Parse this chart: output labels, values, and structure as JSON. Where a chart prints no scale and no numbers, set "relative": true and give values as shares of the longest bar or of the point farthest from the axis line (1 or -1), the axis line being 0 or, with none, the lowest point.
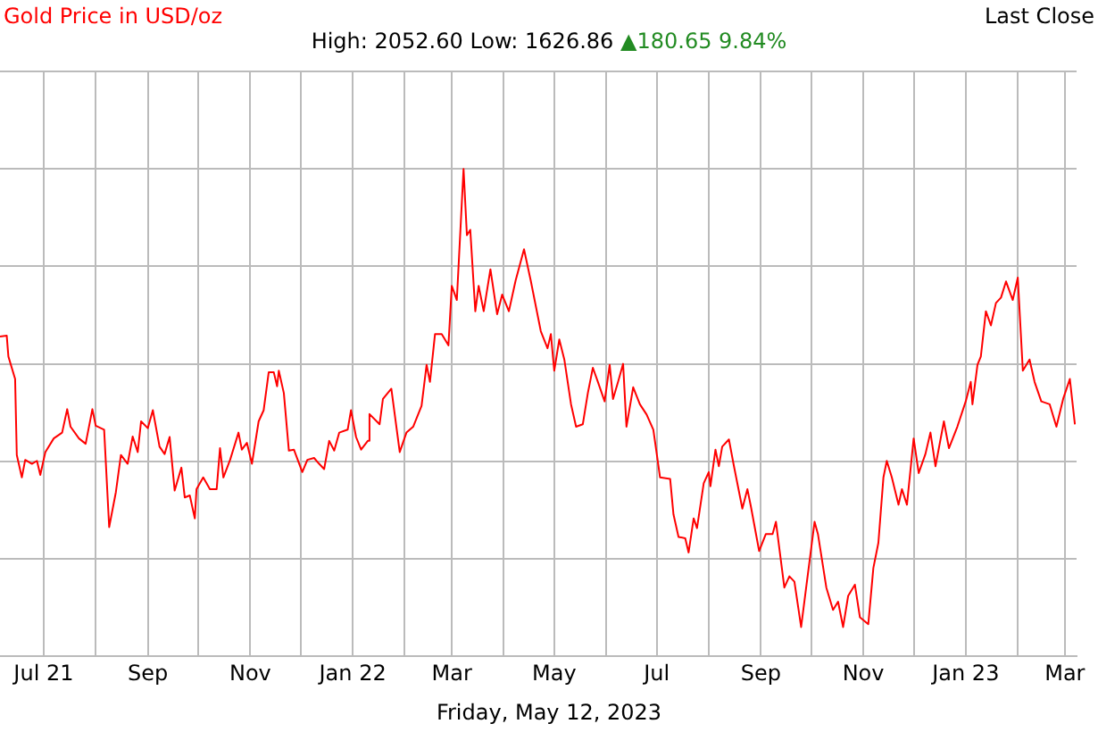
{
  "chart_data": {
    "type": "line",
    "title": "Gold Price in USD/oz",
    "subtitle": "High: 2052.60 Low: 1626.86",
    "annotations": [
      "▲180.65 9.84%",
      "Last Close",
      "Friday, May 12, 2023"
    ],
    "relative": true,
    "grid": true,
    "legend": false,
    "marker": "none",
    "line_style": "solid",
    "xlim": [
      "2021-06-05",
      "2023-03-08"
    ],
    "xticks": [
      {
        "value": "2021-07-01",
        "label": "Jul 21"
      },
      {
        "value": "2021-08-01",
        "label": null
      },
      {
        "value": "2021-09-01",
        "label": "Sep"
      },
      {
        "value": "2021-10-01",
        "label": null
      },
      {
        "value": "2021-11-01",
        "label": "Nov"
      },
      {
        "value": "2021-12-01",
        "label": null
      },
      {
        "value": "2022-01-01",
        "label": "Jan 22"
      },
      {
        "value": "2022-02-01",
        "label": null
      },
      {
        "value": "2022-03-01",
        "label": "Mar"
      },
      {
        "value": "2022-04-01",
        "label": null
      },
      {
        "value": "2022-05-01",
        "label": "May"
      },
      {
        "value": "2022-06-01",
        "label": null
      },
      {
        "value": "2022-07-01",
        "label": "Jul"
      },
      {
        "value": "2022-08-01",
        "label": null
      },
      {
        "value": "2022-09-01",
        "label": "Sep"
      },
      {
        "value": "2022-10-01",
        "label": null
      },
      {
        "value": "2022-11-01",
        "label": "Nov"
      },
      {
        "value": "2022-12-01",
        "label": null
      },
      {
        "value": "2023-01-01",
        "label": "Jan 23"
      },
      {
        "value": "2023-02-01",
        "label": null
      },
      {
        "value": "2023-03-01",
        "label": "Mar"
      }
    ],
    "series": [
      {
        "color": "#ff0000",
        "x": [
          "2021-06-05",
          "2021-06-09",
          "2021-06-10",
          "2021-06-14",
          "2021-06-15",
          "2021-06-18",
          "2021-06-20",
          "2021-06-24",
          "2021-06-27",
          "2021-06-29",
          "2021-07-02",
          "2021-07-07",
          "2021-07-12",
          "2021-07-15",
          "2021-07-17",
          "2021-07-22",
          "2021-07-26",
          "2021-07-30",
          "2021-08-01",
          "2021-08-06",
          "2021-08-09",
          "2021-08-13",
          "2021-08-16",
          "2021-08-20",
          "2021-08-23",
          "2021-08-26",
          "2021-08-28",
          "2021-09-01",
          "2021-09-04",
          "2021-09-08",
          "2021-09-11",
          "2021-09-14",
          "2021-09-17",
          "2021-09-21",
          "2021-09-23",
          "2021-09-26",
          "2021-09-29",
          "2021-09-30",
          "2021-10-04",
          "2021-10-08",
          "2021-10-12",
          "2021-10-14",
          "2021-10-16",
          "2021-10-20",
          "2021-10-25",
          "2021-10-27",
          "2021-10-30",
          "2021-11-02",
          "2021-11-06",
          "2021-11-09",
          "2021-11-12",
          "2021-11-15",
          "2021-11-17",
          "2021-11-18",
          "2021-11-21",
          "2021-11-24",
          "2021-11-27",
          "2021-12-02",
          "2021-12-05",
          "2021-12-09",
          "2021-12-12",
          "2021-12-15",
          "2021-12-18",
          "2021-12-21",
          "2021-12-24",
          "2021-12-29",
          "2021-12-31",
          "2022-01-03",
          "2022-01-06",
          "2022-01-10",
          "2022-01-11",
          "2022-01-17",
          "2022-01-19",
          "2022-01-24",
          "2022-01-29",
          "2022-02-02",
          "2022-02-06",
          "2022-02-11",
          "2022-02-14",
          "2022-02-16",
          "2022-02-19",
          "2022-02-23",
          "2022-02-27",
          "2022-03-01",
          "2022-03-04",
          "2022-03-08",
          "2022-03-10",
          "2022-03-12",
          "2022-03-15",
          "2022-03-17",
          "2022-03-20",
          "2022-03-24",
          "2022-03-28",
          "2022-03-31",
          "2022-04-04",
          "2022-04-08",
          "2022-04-13",
          "2022-04-17",
          "2022-04-23",
          "2022-04-27",
          "2022-04-29",
          "2022-05-01",
          "2022-05-04",
          "2022-05-07",
          "2022-05-11",
          "2022-05-14",
          "2022-05-18",
          "2022-05-21",
          "2022-05-24",
          "2022-05-27",
          "2022-05-31",
          "2022-06-03",
          "2022-06-05",
          "2022-06-08",
          "2022-06-11",
          "2022-06-13",
          "2022-06-17",
          "2022-06-21",
          "2022-06-25",
          "2022-06-29",
          "2022-07-03",
          "2022-07-09",
          "2022-07-11",
          "2022-07-14",
          "2022-07-18",
          "2022-07-20",
          "2022-07-23",
          "2022-07-25",
          "2022-07-29",
          "2022-08-01",
          "2022-08-02",
          "2022-08-05",
          "2022-08-07",
          "2022-08-09",
          "2022-08-13",
          "2022-08-16",
          "2022-08-21",
          "2022-08-24",
          "2022-08-26",
          "2022-08-31",
          "2022-09-04",
          "2022-09-08",
          "2022-09-10",
          "2022-09-15",
          "2022-09-18",
          "2022-09-21",
          "2022-09-25",
          "2022-09-28",
          "2022-10-03",
          "2022-10-05",
          "2022-10-10",
          "2022-10-14",
          "2022-10-17",
          "2022-10-20",
          "2022-10-23",
          "2022-10-27",
          "2022-10-30",
          "2022-11-04",
          "2022-11-07",
          "2022-11-10",
          "2022-11-13",
          "2022-11-15",
          "2022-11-18",
          "2022-11-22",
          "2022-11-24",
          "2022-11-27",
          "2022-12-01",
          "2022-12-04",
          "2022-12-08",
          "2022-12-11",
          "2022-12-14",
          "2022-12-19",
          "2022-12-22",
          "2022-12-27",
          "2023-01-01",
          "2023-01-04",
          "2023-01-05",
          "2023-01-08",
          "2023-01-10",
          "2023-01-13",
          "2023-01-16",
          "2023-01-19",
          "2023-01-22",
          "2023-01-25",
          "2023-01-29",
          "2023-02-01",
          "2023-02-04",
          "2023-02-08",
          "2023-02-11",
          "2023-02-15",
          "2023-02-20",
          "2023-02-24",
          "2023-02-28",
          "2023-03-04",
          "2023-03-07"
        ],
        "values": [
          0.656,
          0.658,
          0.615,
          0.569,
          0.413,
          0.367,
          0.403,
          0.395,
          0.401,
          0.372,
          0.419,
          0.447,
          0.459,
          0.507,
          0.471,
          0.447,
          0.436,
          0.507,
          0.473,
          0.465,
          0.265,
          0.337,
          0.413,
          0.395,
          0.451,
          0.419,
          0.482,
          0.468,
          0.505,
          0.43,
          0.415,
          0.45,
          0.34,
          0.387,
          0.326,
          0.33,
          0.283,
          0.343,
          0.367,
          0.343,
          0.343,
          0.427,
          0.367,
          0.403,
          0.459,
          0.424,
          0.438,
          0.395,
          0.482,
          0.505,
          0.583,
          0.583,
          0.554,
          0.586,
          0.54,
          0.422,
          0.424,
          0.378,
          0.403,
          0.407,
          0.395,
          0.384,
          0.442,
          0.422,
          0.459,
          0.465,
          0.505,
          0.45,
          0.424,
          0.442,
          0.497,
          0.476,
          0.528,
          0.549,
          0.419,
          0.459,
          0.471,
          0.514,
          0.598,
          0.563,
          0.661,
          0.661,
          0.638,
          0.76,
          0.731,
          1,
          0.864,
          0.875,
          0.708,
          0.76,
          0.708,
          0.794,
          0.702,
          0.742,
          0.708,
          0.771,
          0.835,
          0.771,
          0.667,
          0.632,
          0.661,
          0.586,
          0.65,
          0.609,
          0.517,
          0.471,
          0.476,
          0.54,
          0.592,
          0.563,
          0.523,
          0.598,
          0.528,
          0.563,
          0.6,
          0.471,
          0.552,
          0.517,
          0.496,
          0.465,
          0.367,
          0.364,
          0.291,
          0.245,
          0.242,
          0.213,
          0.283,
          0.263,
          0.355,
          0.378,
          0.349,
          0.424,
          0.39,
          0.43,
          0.445,
          0.39,
          0.303,
          0.343,
          0.309,
          0.216,
          0.251,
          0.251,
          0.276,
          0.141,
          0.164,
          0.153,
          0.06,
          0.141,
          0.276,
          0.251,
          0.141,
          0.095,
          0.112,
          0.06,
          0.124,
          0.147,
          0.08,
          0.066,
          0.181,
          0.233,
          0.367,
          0.401,
          0.367,
          0.311,
          0.343,
          0.311,
          0.447,
          0.376,
          0.415,
          0.459,
          0.39,
          0.482,
          0.427,
          0.471,
          0.523,
          0.563,
          0.517,
          0.598,
          0.615,
          0.708,
          0.679,
          0.725,
          0.736,
          0.769,
          0.731,
          0.777,
          0.586,
          0.609,
          0.563,
          0.523,
          0.517,
          0.471,
          0.528,
          0.569,
          0.476
        ]
      }
    ]
  }
}
